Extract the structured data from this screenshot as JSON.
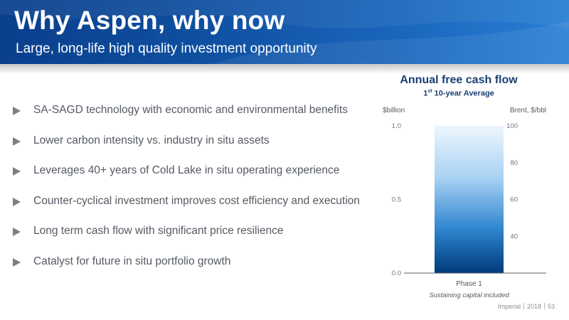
{
  "header": {
    "title": "Why Aspen, why now",
    "subtitle": "Large, long-life high quality investment opportunity"
  },
  "bullets": [
    "SA-SAGD technology with economic and environmental benefits",
    "Lower carbon intensity vs. industry in situ assets",
    "Leverages 40+ years of Cold Lake in situ operating experience",
    "Counter-cyclical investment improves cost efficiency and execution",
    "Long term cash flow with significant price resilience",
    "Catalyst for future in situ portfolio growth"
  ],
  "chart": {
    "title": "Annual free cash flow",
    "subtitle_sup": "st",
    "subtitle_pre": "1",
    "subtitle_post": " 10-year Average"
  },
  "chart_data": {
    "type": "bar",
    "categories": [
      "Phase 1"
    ],
    "y_left": {
      "label": "$billion",
      "ticks": [
        "0.0",
        "0.5",
        "1.0"
      ],
      "range": [
        0,
        1.0
      ]
    },
    "y_right": {
      "label": "Brent, $/bbl",
      "ticks": [
        "40",
        "60",
        "80",
        "100"
      ],
      "range": [
        20,
        100
      ]
    },
    "shading": "gradient",
    "note": "Sustaining capital included"
  },
  "footer": {
    "company": "Imperial",
    "year": "2018",
    "page": "53"
  },
  "colors": {
    "header": "#0f4fa0",
    "bar_top": "#e6f2fc",
    "bar_bottom": "#003f80",
    "chart_title": "#1b3f73"
  }
}
